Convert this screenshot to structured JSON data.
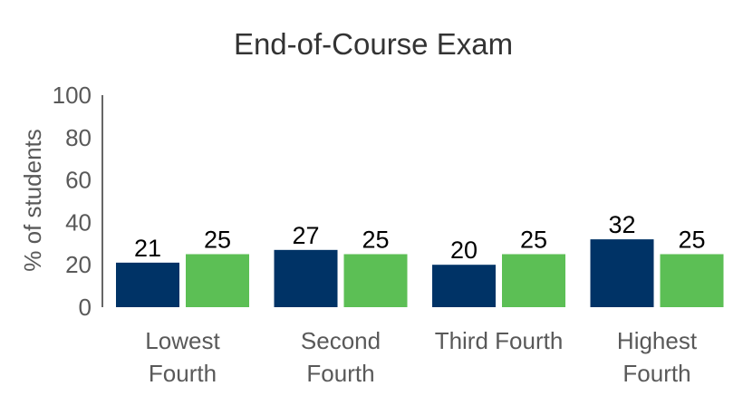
{
  "chart_data": {
    "type": "bar",
    "title": "End-of-Course Exam",
    "ylabel": "% of students",
    "xlabel": "",
    "ylim": [
      0,
      100
    ],
    "yticks": [
      0,
      20,
      40,
      60,
      80,
      100
    ],
    "categories": [
      [
        "Lowest",
        "Fourth"
      ],
      [
        "Second",
        "Fourth"
      ],
      [
        "Third Fourth"
      ],
      [
        "Highest",
        "Fourth"
      ]
    ],
    "series": [
      {
        "values": [
          21,
          27,
          20,
          32
        ],
        "color": "#003366"
      },
      {
        "values": [
          25,
          25,
          25,
          25
        ],
        "color": "#5cbf55"
      }
    ],
    "grid": false,
    "legend": "none"
  }
}
